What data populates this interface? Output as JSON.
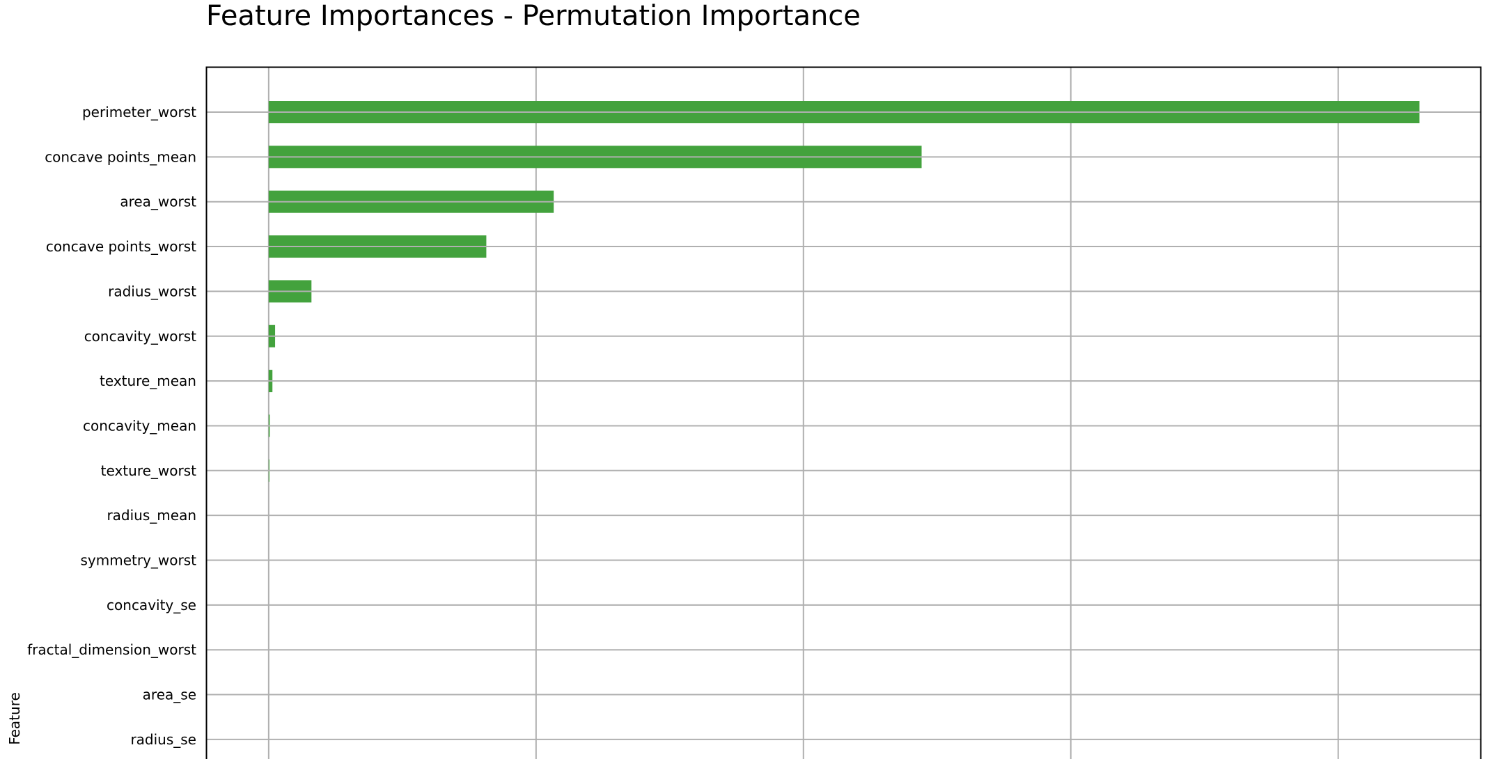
{
  "chart_data": {
    "type": "bar",
    "orientation": "horizontal",
    "title": "Feature Importances - Permutation Importance",
    "xlabel": "",
    "ylabel": "Feature",
    "grid": true,
    "bar_color": "#43a23d",
    "categories": [
      "perimeter_worst",
      "concave points_mean",
      "area_worst",
      "concave points_worst",
      "radius_worst",
      "concavity_worst",
      "texture_mean",
      "concavity_mean",
      "texture_worst",
      "radius_mean",
      "symmetry_worst",
      "concavity_se",
      "fractal_dimension_worst",
      "area_se",
      "radius_se"
    ],
    "values": [
      0.2152,
      0.1221,
      0.0533,
      0.0407,
      0.008,
      0.0012,
      0.0007,
      0.0002,
      0.0001,
      0.0,
      0.0,
      0.0,
      0.0,
      0.0,
      0.0
    ],
    "xlim": [
      -0.0117,
      0.2266
    ],
    "xgrid": [
      0.0,
      0.05,
      0.1,
      0.15,
      0.2
    ]
  }
}
